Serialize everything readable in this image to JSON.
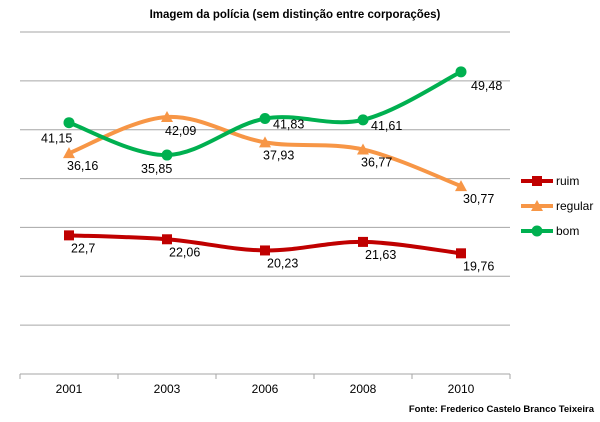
{
  "chart_data": {
    "type": "line",
    "title": "Imagem da polícia (sem distinção entre corporações)",
    "categories": [
      "2001",
      "2003",
      "2006",
      "2008",
      "2010"
    ],
    "ylim": [
      0,
      56
    ],
    "y_gridline_step": 8,
    "grid": true,
    "legend_placement": "right",
    "smooth": true,
    "series": [
      {
        "name": "ruim",
        "color": "#c00000",
        "marker": "square",
        "values": [
          22.7,
          22.06,
          20.23,
          21.63,
          19.76
        ],
        "labels": [
          "22,7",
          "22,06",
          "20,23",
          "21,63",
          "19,76"
        ]
      },
      {
        "name": "regular",
        "color": "#f79646",
        "marker": "triangle",
        "values": [
          36.16,
          42.09,
          37.93,
          36.77,
          30.77
        ],
        "labels": [
          "36,16",
          "42,09",
          "37,93",
          "36,77",
          "30,77"
        ]
      },
      {
        "name": "bom",
        "color": "#00b050",
        "marker": "circle",
        "values": [
          41.15,
          35.85,
          41.83,
          41.61,
          49.48
        ],
        "labels": [
          "41,15",
          "35,85",
          "41,83",
          "41,61",
          "49,48"
        ]
      }
    ],
    "source": "Fonte: Frederico Castelo Branco Teixeira"
  }
}
